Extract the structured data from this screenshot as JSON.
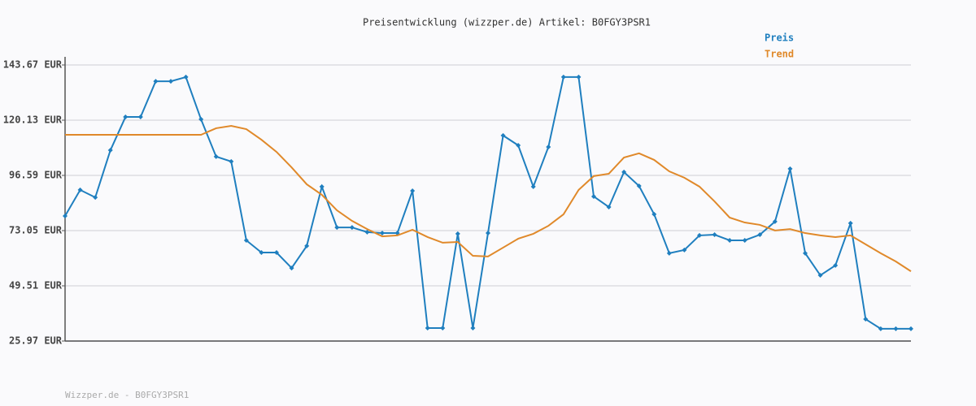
{
  "chart_data": {
    "type": "line",
    "title": "Preisentwicklung (wizzper.de) Artikel: B0FGY3PSR1",
    "footer": "Wizzper.de - B0FGY3PSR1",
    "categories": [
      null,
      null,
      null,
      null,
      null,
      null,
      null,
      null,
      null,
      null,
      null,
      null,
      null,
      null,
      null,
      null,
      null,
      null,
      null,
      null,
      null,
      null,
      null,
      null,
      null,
      null,
      null,
      null,
      null,
      null,
      null,
      null,
      null,
      null,
      null,
      null,
      null,
      null,
      null,
      null,
      null,
      null,
      null,
      null,
      null,
      null,
      null,
      null,
      null,
      null,
      null,
      null,
      null,
      null,
      null,
      null,
      null
    ],
    "series": [
      {
        "name": "Preis",
        "color": "#1f7fbf",
        "markers": true,
        "values": [
          79.3,
          90.4,
          87.2,
          107.3,
          121.5,
          121.5,
          136.7,
          136.7,
          138.5,
          120.5,
          104.6,
          102.5,
          68.9,
          63.7,
          63.7,
          57.1,
          66.5,
          91.8,
          74.4,
          74.4,
          72.4,
          72.0,
          72.0,
          90.0,
          31.5,
          31.5,
          71.7,
          31.5,
          72.0,
          113.6,
          109.4,
          91.8,
          108.7,
          138.5,
          138.5,
          87.6,
          83.1,
          98.0,
          92.1,
          80.0,
          63.4,
          64.8,
          71.0,
          71.3,
          68.9,
          68.9,
          71.3,
          76.9,
          99.4,
          63.4,
          54.0,
          58.2,
          76.2,
          35.3,
          31.2,
          31.2,
          31.2
        ]
      },
      {
        "name": "Trend",
        "color": "#e0892a",
        "markers": false,
        "values": [
          113.9,
          113.9,
          113.9,
          113.9,
          113.9,
          113.9,
          113.9,
          113.9,
          113.9,
          113.9,
          116.7,
          117.7,
          116.3,
          111.8,
          106.6,
          100.0,
          92.8,
          88.3,
          81.7,
          77.2,
          73.7,
          70.6,
          71.0,
          73.4,
          70.3,
          67.9,
          68.2,
          62.3,
          62.0,
          65.8,
          69.6,
          71.7,
          75.1,
          80.0,
          90.4,
          96.3,
          97.3,
          104.2,
          106.0,
          103.2,
          98.3,
          95.6,
          91.8,
          85.5,
          78.6,
          76.5,
          75.5,
          73.1,
          73.7,
          72.0,
          71.0,
          70.3,
          71.0,
          67.2,
          63.4,
          59.9,
          55.7
        ]
      }
    ],
    "ylim": [
      25.97,
      143.67
    ],
    "yticks": [
      {
        "value": 25.97,
        "label": "25.97 EUR"
      },
      {
        "value": 49.51,
        "label": "49.51 EUR"
      },
      {
        "value": 73.05,
        "label": "73.05 EUR"
      },
      {
        "value": 96.59,
        "label": "96.59 EUR"
      },
      {
        "value": 120.13,
        "label": "120.13 EUR"
      },
      {
        "value": 143.67,
        "label": "143.67 EUR"
      }
    ],
    "grid": true
  }
}
